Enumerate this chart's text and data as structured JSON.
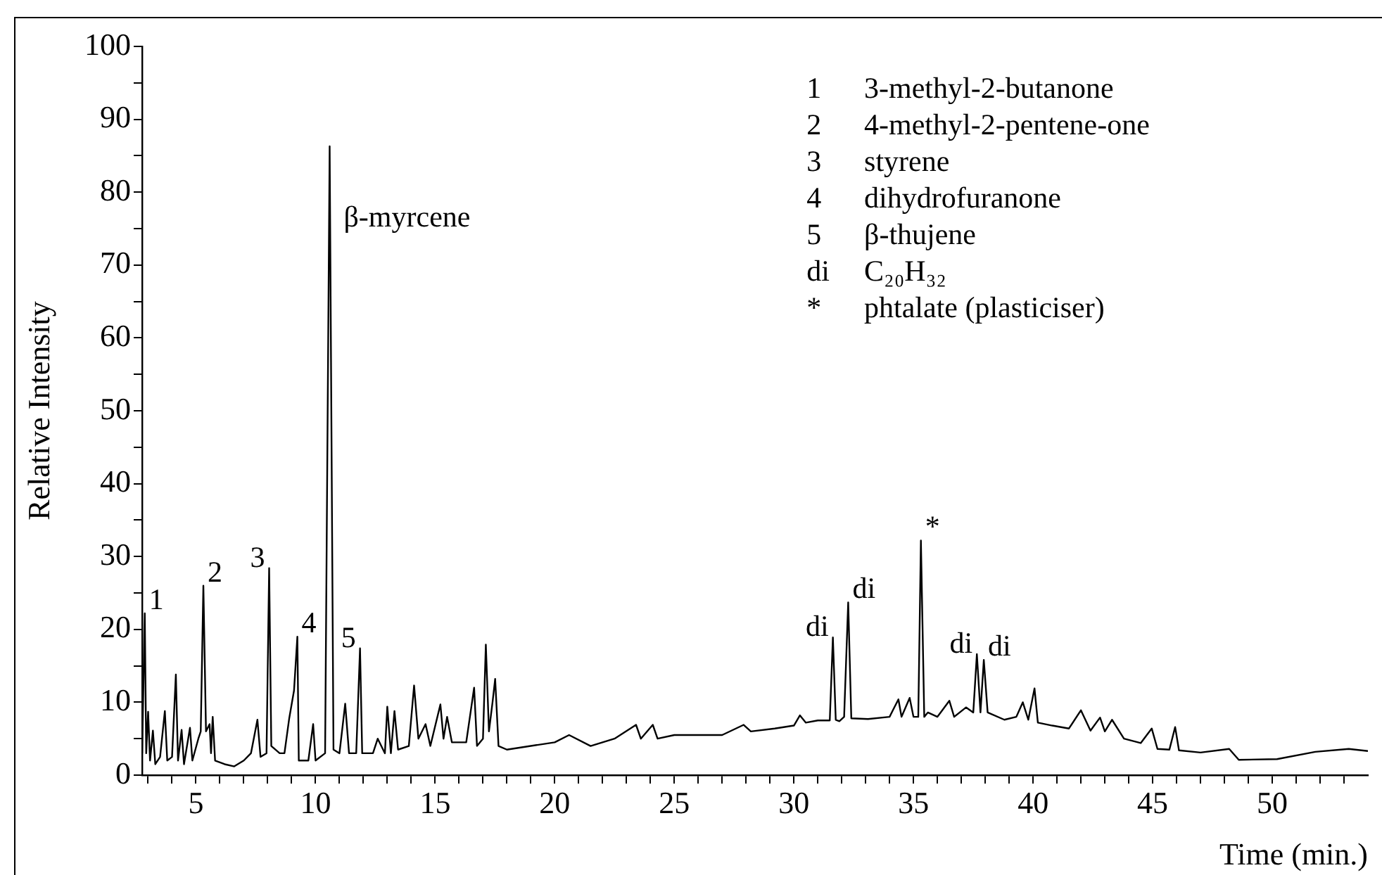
{
  "chart_data": {
    "type": "line",
    "xlabel": "Time (min.)",
    "ylabel": "Relative Intensity",
    "color": "#000000",
    "marker": "none",
    "line_style": "solid",
    "xlim": [
      2.75,
      54
    ],
    "ylim": [
      0,
      100
    ],
    "xticks": [
      {
        "value": 3,
        "label": null
      },
      {
        "value": 4,
        "label": null
      },
      5,
      {
        "value": 6,
        "label": null
      },
      {
        "value": 7,
        "label": null
      },
      {
        "value": 8,
        "label": null
      },
      {
        "value": 9,
        "label": null
      },
      10,
      {
        "value": 11,
        "label": null
      },
      {
        "value": 12,
        "label": null
      },
      {
        "value": 13,
        "label": null
      },
      {
        "value": 14,
        "label": null
      },
      15,
      {
        "value": 16,
        "label": null
      },
      {
        "value": 17,
        "label": null
      },
      {
        "value": 18,
        "label": null
      },
      {
        "value": 19,
        "label": null
      },
      20,
      {
        "value": 21,
        "label": null
      },
      {
        "value": 22,
        "label": null
      },
      {
        "value": 23,
        "label": null
      },
      {
        "value": 24,
        "label": null
      },
      25,
      {
        "value": 26,
        "label": null
      },
      {
        "value": 27,
        "label": null
      },
      {
        "value": 28,
        "label": null
      },
      {
        "value": 29,
        "label": null
      },
      30,
      {
        "value": 31,
        "label": null
      },
      {
        "value": 32,
        "label": null
      },
      {
        "value": 33,
        "label": null
      },
      {
        "value": 34,
        "label": null
      },
      35,
      {
        "value": 36,
        "label": null
      },
      {
        "value": 37,
        "label": null
      },
      {
        "value": 38,
        "label": null
      },
      {
        "value": 39,
        "label": null
      },
      40,
      {
        "value": 41,
        "label": null
      },
      {
        "value": 42,
        "label": null
      },
      {
        "value": 43,
        "label": null
      },
      {
        "value": 44,
        "label": null
      },
      45,
      {
        "value": 46,
        "label": null
      },
      {
        "value": 47,
        "label": null
      },
      {
        "value": 48,
        "label": null
      },
      {
        "value": 49,
        "label": null
      },
      50,
      {
        "value": 51,
        "label": null
      },
      {
        "value": 52,
        "label": null
      },
      {
        "value": 53,
        "label": null
      }
    ],
    "yticks": [
      0,
      {
        "value": 5,
        "label": null
      },
      10,
      {
        "value": 15,
        "label": null
      },
      20,
      {
        "value": 25,
        "label": null
      },
      30,
      {
        "value": 35,
        "label": null
      },
      40,
      {
        "value": 45,
        "label": null
      },
      50,
      {
        "value": 55,
        "label": null
      },
      60,
      {
        "value": 65,
        "label": null
      },
      70,
      {
        "value": 75,
        "label": null
      },
      80,
      {
        "value": 85,
        "label": null
      },
      90,
      {
        "value": 95,
        "label": null
      },
      100
    ],
    "x": [
      2.75,
      2.86,
      2.92,
      3.0,
      3.08,
      3.2,
      3.3,
      3.5,
      3.7,
      3.8,
      4.0,
      4.16,
      4.25,
      4.4,
      4.5,
      4.75,
      4.85,
      5.1,
      5.2,
      5.31,
      5.42,
      5.57,
      5.63,
      5.7,
      5.8,
      6.2,
      6.6,
      7.0,
      7.3,
      7.57,
      7.7,
      7.95,
      8.06,
      8.15,
      8.5,
      8.7,
      8.9,
      9.1,
      9.24,
      9.3,
      9.7,
      9.9,
      10.0,
      10.4,
      10.59,
      10.75,
      11.0,
      11.24,
      11.4,
      11.7,
      11.86,
      11.95,
      12.4,
      12.6,
      12.9,
      13.0,
      13.15,
      13.3,
      13.45,
      13.9,
      14.12,
      14.3,
      14.6,
      14.8,
      15.22,
      15.35,
      15.5,
      15.7,
      16.3,
      16.63,
      16.75,
      17.0,
      17.12,
      17.25,
      17.4,
      17.51,
      17.65,
      18.0,
      19.0,
      20.0,
      20.6,
      21.5,
      22.5,
      23.4,
      23.6,
      24.1,
      24.3,
      25.0,
      26.2,
      27.0,
      27.9,
      28.2,
      29.2,
      30.0,
      30.25,
      30.5,
      31.0,
      31.5,
      31.63,
      31.75,
      31.9,
      32.1,
      32.27,
      32.4,
      33.1,
      34.0,
      34.37,
      34.5,
      34.84,
      35.0,
      35.2,
      35.31,
      35.45,
      35.6,
      36.0,
      36.5,
      36.7,
      37.2,
      37.5,
      37.65,
      37.8,
      37.94,
      38.1,
      38.8,
      39.3,
      39.57,
      39.8,
      40.06,
      40.2,
      40.8,
      41.5,
      42.0,
      42.4,
      42.8,
      43.0,
      43.3,
      43.8,
      44.5,
      44.96,
      45.2,
      45.7,
      45.94,
      46.1,
      47.0,
      48.2,
      48.6,
      50.2,
      51.8,
      53.2,
      54.0
    ],
    "values": [
      3,
      22.2,
      3,
      8.7,
      2,
      6.1,
      1.5,
      2.5,
      8.8,
      2,
      2.5,
      13.8,
      2,
      6.2,
      1.5,
      6.5,
      2,
      5,
      6,
      26.0,
      6,
      7,
      3,
      8,
      2,
      1.5,
      1.2,
      2,
      3,
      7.6,
      2.5,
      3,
      28.4,
      4,
      3,
      3,
      7.8,
      11.6,
      19.0,
      2,
      2,
      7,
      2,
      3,
      86.3,
      3.5,
      3,
      9.8,
      3,
      3,
      17.4,
      3,
      3,
      5,
      3,
      9.4,
      3,
      8.8,
      3.5,
      4,
      12.3,
      5,
      7,
      4,
      9.7,
      5,
      8,
      4.5,
      4.5,
      12.0,
      4,
      5,
      17.9,
      6,
      10,
      13.2,
      4,
      3.5,
      4,
      4.5,
      5.5,
      4.0,
      5,
      6.9,
      5,
      6.9,
      5,
      5.5,
      5.5,
      5.5,
      6.9,
      6,
      6.4,
      6.8,
      8.2,
      7.2,
      7.5,
      7.5,
      18.9,
      7.6,
      7.4,
      8,
      23.7,
      7.8,
      7.7,
      8,
      10.4,
      8,
      10.6,
      8,
      8,
      32.2,
      8,
      8.6,
      8,
      10.2,
      8,
      9.3,
      8.6,
      16.6,
      8.6,
      15.8,
      8.6,
      7.6,
      8,
      10.0,
      7.6,
      11.9,
      7.2,
      6.8,
      6.4,
      8.9,
      6.1,
      7.9,
      6,
      7.6,
      5.0,
      4.4,
      6.4,
      3.6,
      3.5,
      6.6,
      3.4,
      3.1,
      3.6,
      2.1,
      2.2,
      3.2,
      3.6,
      3.3
    ],
    "annotations": [
      {
        "text": "1",
        "x": 2.86,
        "y": 22.2
      },
      {
        "text": "2",
        "x": 5.31,
        "y": 26.0
      },
      {
        "text": "3",
        "x": 8.06,
        "y": 28.4
      },
      {
        "text": "4",
        "x": 9.24,
        "y": 19.0
      },
      {
        "text": "5",
        "x": 11.86,
        "y": 17.4
      },
      {
        "text": "β-myrcene",
        "x": 10.59,
        "y": 86.3
      },
      {
        "text": "di",
        "x": 31.63,
        "y": 18.9
      },
      {
        "text": "di",
        "x": 32.27,
        "y": 23.7
      },
      {
        "text": "*",
        "x": 35.31,
        "y": 32.2
      },
      {
        "text": "di",
        "x": 37.65,
        "y": 16.6
      },
      {
        "text": "di",
        "x": 37.94,
        "y": 15.8
      },
      "1 3-methyl-2-butanone",
      "2 4-methyl-2-pentene-one",
      "3 styrene",
      "4 dihydrofuranone",
      "5 β-thujene",
      "di C₂₀H₃₂",
      "* phtalate (plasticiser)"
    ]
  }
}
